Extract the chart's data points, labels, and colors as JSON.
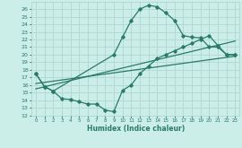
{
  "xlabel": "Humidex (Indice chaleur)",
  "bg_color": "#cceee8",
  "grid_color": "#b0d8d0",
  "line_color": "#2a7a6a",
  "xlim": [
    -0.5,
    23.5
  ],
  "ylim": [
    12,
    27
  ],
  "xticks": [
    0,
    1,
    2,
    3,
    4,
    5,
    6,
    7,
    8,
    9,
    10,
    11,
    12,
    13,
    14,
    15,
    16,
    17,
    18,
    19,
    20,
    21,
    22,
    23
  ],
  "yticks": [
    12,
    13,
    14,
    15,
    16,
    17,
    18,
    19,
    20,
    21,
    22,
    23,
    24,
    25,
    26
  ],
  "line1_x": [
    0,
    1,
    2,
    9,
    10,
    11,
    12,
    13,
    14,
    15,
    16,
    17,
    18,
    19,
    20,
    21,
    22,
    23
  ],
  "line1_y": [
    17.5,
    15.8,
    15.2,
    20.0,
    22.3,
    24.5,
    26.0,
    26.5,
    26.3,
    25.5,
    24.5,
    22.5,
    22.3,
    22.2,
    21.0,
    21.0,
    20.0,
    20.0
  ],
  "line2_x": [
    0,
    23
  ],
  "line2_y": [
    15.5,
    21.8
  ],
  "line3_x": [
    0,
    23
  ],
  "line3_y": [
    16.2,
    19.8
  ],
  "line4_x": [
    0,
    1,
    2,
    3,
    4,
    5,
    6,
    7,
    8,
    9,
    10,
    11,
    12,
    13,
    14,
    15,
    16,
    17,
    18,
    19,
    20,
    21,
    22,
    23
  ],
  "line4_y": [
    17.5,
    15.8,
    15.2,
    14.2,
    14.1,
    13.8,
    13.5,
    13.5,
    12.7,
    12.5,
    15.3,
    16.0,
    17.5,
    18.5,
    19.5,
    20.0,
    20.5,
    21.0,
    21.5,
    22.0,
    22.5,
    21.2,
    20.0,
    20.0
  ]
}
